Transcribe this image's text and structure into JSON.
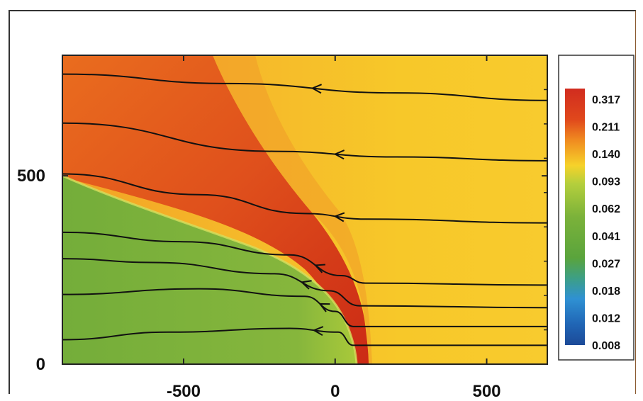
{
  "chart_data": {
    "type": "heatmap",
    "title": "",
    "xlabel": "",
    "ylabel": "",
    "x_ticks": [
      "-500",
      "0",
      "500"
    ],
    "y_ticks": [
      "0",
      "500"
    ],
    "xlim": [
      -900,
      700
    ],
    "ylim": [
      0,
      820
    ],
    "colorbar": {
      "labels": [
        "0.317",
        "0.211",
        "0.140",
        "0.093",
        "0.062",
        "0.041",
        "0.027",
        "0.018",
        "0.012",
        "0.008"
      ],
      "colors": [
        "#d12c1f",
        "#e8621d",
        "#f3bb1d",
        "#a9c93a",
        "#76b23a",
        "#5ea53a",
        "#4aa26a",
        "#2f8fd0",
        "#1f66b8",
        "#1d4e9e"
      ]
    },
    "regions": [
      {
        "name": "yellow background",
        "color": "#f6c525"
      },
      {
        "name": "green inner region",
        "color": "#7db23a"
      },
      {
        "name": "red shock layer",
        "color": "#cf3216"
      }
    ],
    "streamlines": [
      {
        "y_start": 770,
        "points": [
          [
            700,
            700
          ],
          [
            200,
            720
          ],
          [
            -350,
            745
          ],
          [
            -900,
            770
          ]
        ]
      },
      {
        "y_start": 640,
        "points": [
          [
            700,
            540
          ],
          [
            200,
            550
          ],
          [
            -200,
            565
          ],
          [
            -900,
            640
          ]
        ]
      },
      {
        "y_start": 505,
        "points": [
          [
            700,
            375
          ],
          [
            100,
            385
          ],
          [
            -100,
            400
          ],
          [
            -450,
            450
          ],
          [
            -900,
            505
          ]
        ]
      },
      {
        "y_start": 350,
        "points": [
          [
            700,
            210
          ],
          [
            100,
            215
          ],
          [
            20,
            235
          ],
          [
            -150,
            290
          ],
          [
            -500,
            325
          ],
          [
            -900,
            350
          ]
        ]
      },
      {
        "y_start": 280,
        "points": [
          [
            700,
            150
          ],
          [
            80,
            155
          ],
          [
            -20,
            195
          ],
          [
            -200,
            240
          ],
          [
            -600,
            270
          ],
          [
            -900,
            280
          ]
        ]
      },
      {
        "y_start": 185,
        "points": [
          [
            700,
            100
          ],
          [
            60,
            100
          ],
          [
            0,
            140
          ],
          [
            -100,
            180
          ],
          [
            -450,
            200
          ],
          [
            -900,
            185
          ]
        ]
      },
      {
        "y_start": 65,
        "points": [
          [
            700,
            50
          ],
          [
            60,
            50
          ],
          [
            10,
            85
          ],
          [
            -150,
            95
          ],
          [
            -550,
            85
          ],
          [
            -900,
            65
          ]
        ]
      }
    ]
  }
}
